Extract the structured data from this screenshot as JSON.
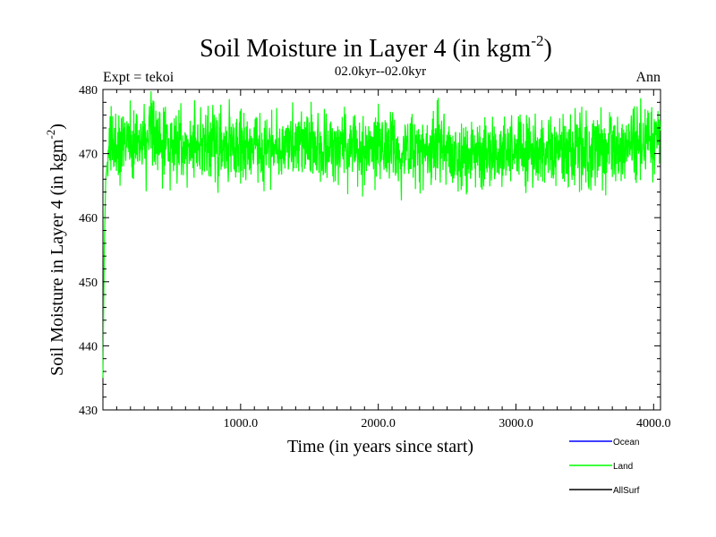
{
  "chart_data": {
    "type": "line",
    "title": "Soil Moisture in Layer 4 (in kgm",
    "title_sup": "-2",
    "title_close": ")",
    "subtitle": "02.0kyr--02.0kyr",
    "left_note": "Expt = tekoi",
    "right_note": "Ann",
    "xlabel": "Time (in years since start)",
    "ylabel": "Soil Moisture in Layer 4 (in kgm",
    "ylabel_sup": "-2",
    "ylabel_close": ")",
    "xlim": [
      0,
      4050
    ],
    "ylim": [
      430,
      480
    ],
    "x_ticks": [
      1000,
      2000,
      3000,
      4000
    ],
    "x_tick_labels": [
      "1000.0",
      "2000.0",
      "3000.0",
      "4000.0"
    ],
    "y_ticks": [
      430,
      440,
      450,
      460,
      470,
      480
    ],
    "y_tick_labels": [
      "430",
      "440",
      "450",
      "460",
      "470",
      "480"
    ],
    "grid": false,
    "legend_position": "bottom-right",
    "series": [
      {
        "name": "Ocean",
        "color": "#0000ff",
        "values": []
      },
      {
        "name": "Land",
        "color": "#00ff00",
        "x": [
          0,
          10,
          20,
          40,
          100,
          200,
          300,
          400,
          500,
          600,
          700,
          800,
          900,
          1000,
          1100,
          1200,
          1300,
          1400,
          1500,
          1600,
          1700,
          1800,
          1900,
          2000,
          2100,
          2200,
          2300,
          2400,
          2500,
          2600,
          2700,
          2800,
          2900,
          3000,
          3100,
          3200,
          3300,
          3400,
          3500,
          3600,
          3700,
          3800,
          3900,
          4000,
          4050
        ],
        "values": [
          435,
          455,
          466,
          470,
          471.5,
          472,
          471.8,
          472.3,
          471.6,
          471.2,
          471.5,
          471.3,
          470.9,
          471.4,
          471.1,
          470.8,
          471.2,
          471.6,
          471.3,
          470.6,
          470.9,
          470.7,
          470.5,
          471.0,
          470.4,
          470.2,
          470.8,
          471.5,
          470.6,
          469.8,
          470.1,
          470.5,
          470.3,
          470.6,
          470.2,
          470.4,
          470.0,
          470.3,
          470.8,
          470.5,
          470.6,
          471.2,
          471.4,
          471.1,
          471.6
        ],
        "noise_amplitude": 3.5
      },
      {
        "name": "AllSurf",
        "color": "#000000",
        "values": []
      }
    ]
  }
}
